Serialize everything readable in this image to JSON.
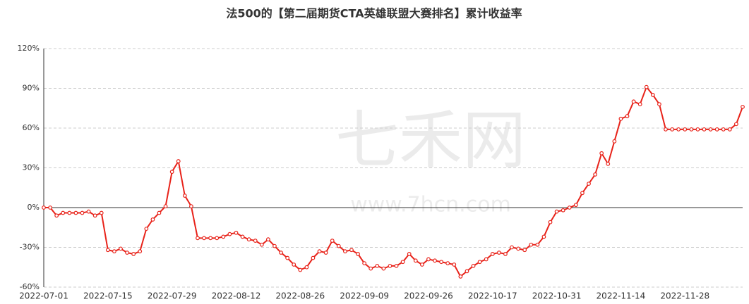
{
  "chart_data": {
    "type": "line",
    "title": "法500的【第二届期货CTA英雄联盟大赛排名】累计收益率",
    "watermark": [
      "七禾网",
      "www.7hcn.com"
    ],
    "categories": [
      "2022-07-01",
      null,
      null,
      null,
      null,
      null,
      null,
      null,
      null,
      null,
      "2022-07-15",
      null,
      null,
      null,
      null,
      null,
      null,
      null,
      null,
      null,
      "2022-07-29",
      null,
      null,
      null,
      null,
      null,
      null,
      null,
      null,
      null,
      "2022-08-12",
      null,
      null,
      null,
      null,
      null,
      null,
      null,
      null,
      null,
      "2022-08-26",
      null,
      null,
      null,
      null,
      null,
      null,
      null,
      null,
      null,
      "2022-09-09",
      null,
      null,
      null,
      null,
      null,
      null,
      null,
      null,
      null,
      "2022-09-26",
      null,
      null,
      null,
      null,
      null,
      null,
      null,
      null,
      null,
      "2022-10-17",
      null,
      null,
      null,
      null,
      null,
      null,
      null,
      null,
      null,
      "2022-10-31",
      null,
      null,
      null,
      null,
      null,
      null,
      null,
      null,
      null,
      "2022-11-14",
      null,
      null,
      null,
      null,
      null,
      null,
      null,
      null,
      null,
      "2022-11-28",
      null,
      null,
      null,
      null,
      null,
      null,
      null,
      null,
      null
    ],
    "series": [
      {
        "color": "#e8231a",
        "values": [
          0,
          0,
          -6,
          -4,
          -4,
          -4,
          -4,
          -3,
          -6,
          -4,
          -32,
          -33,
          -31,
          -34,
          -35,
          -33,
          -16,
          -9,
          -4,
          1,
          27,
          35,
          9,
          1,
          -23,
          -23,
          -23,
          -23,
          -22,
          -20,
          -19,
          -22,
          -24,
          -25,
          -28,
          -24,
          -29,
          -34,
          -38,
          -43,
          -47,
          -45,
          -38,
          -33,
          -34,
          -25,
          -29,
          -33,
          -32,
          -35,
          -42,
          -46,
          -44,
          -46,
          -44,
          -44,
          -41,
          -35,
          -40,
          -43,
          -39,
          -40,
          -41,
          -42,
          -43,
          -52,
          -48,
          -44,
          -41,
          -39,
          -35,
          -34,
          -35,
          -30,
          -31,
          -32,
          -28,
          -28,
          -22,
          -11,
          -3,
          -2,
          0,
          2,
          11,
          18,
          25,
          41,
          33,
          50,
          67,
          69,
          80,
          78,
          91,
          85,
          78,
          59,
          59,
          59,
          59,
          59,
          59,
          59,
          59,
          59,
          59,
          59,
          63,
          76
        ]
      }
    ],
    "ylim": [
      -60,
      120
    ],
    "yticks": [
      {
        "value": -60,
        "label": "-60%"
      },
      {
        "value": -30,
        "label": "-30%"
      },
      {
        "value": 0,
        "label": "0%"
      },
      {
        "value": 30,
        "label": "30%"
      },
      {
        "value": 60,
        "label": "60%"
      },
      {
        "value": 90,
        "label": "90%"
      },
      {
        "value": 120,
        "label": "120%"
      }
    ],
    "grid": true
  }
}
